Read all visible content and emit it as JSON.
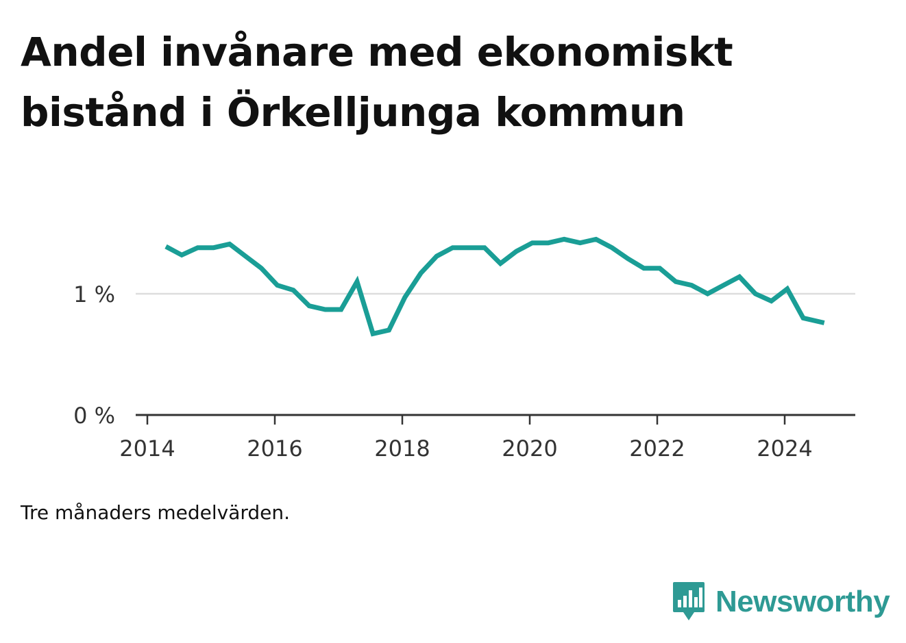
{
  "title": "Andel invånare med ekonomiskt bistånd i Örkelljunga kommun",
  "note": "Tre månaders medelvärden.",
  "brand": {
    "name": "Newsworthy",
    "icon": "newsworthy-logo-icon",
    "color": "#2e9a94"
  },
  "colors": {
    "line": "#1a9e96",
    "axis": "#333333",
    "grid": "#dddddd"
  },
  "chart_data": {
    "type": "line",
    "title": "Andel invånare med ekonomiskt bistånd i Örkelljunga kommun",
    "xlabel": "",
    "ylabel": "",
    "x_ticks": [
      "2014",
      "2016",
      "2018",
      "2020",
      "2022",
      "2024"
    ],
    "y_ticks": [
      "0 %",
      "1 %"
    ],
    "xlim": [
      2014.0,
      2025.0
    ],
    "ylim": [
      0,
      1.8
    ],
    "grid": "horizontal",
    "legend": "none",
    "series": [
      {
        "x": [
          2014.29,
          2014.54,
          2014.79,
          2015.04,
          2015.29,
          2015.54,
          2015.79,
          2016.04,
          2016.29,
          2016.54,
          2016.79,
          2017.04,
          2017.29,
          2017.54,
          2017.79,
          2018.04,
          2018.29,
          2018.54,
          2018.79,
          2019.04,
          2019.29,
          2019.54,
          2019.79,
          2020.04,
          2020.29,
          2020.54,
          2020.79,
          2021.04,
          2021.29,
          2021.54,
          2021.79,
          2022.04,
          2022.29,
          2022.54,
          2022.79,
          2023.04,
          2023.29,
          2023.54,
          2023.79,
          2024.04,
          2024.29,
          2024.62
        ],
        "y": [
          1.39,
          1.32,
          1.38,
          1.38,
          1.41,
          1.31,
          1.21,
          1.07,
          1.03,
          0.9,
          0.87,
          0.87,
          1.1,
          0.67,
          0.7,
          0.97,
          1.17,
          1.31,
          1.38,
          1.38,
          1.38,
          1.25,
          1.35,
          1.42,
          1.42,
          1.45,
          1.42,
          1.45,
          1.38,
          1.29,
          1.21,
          1.21,
          1.1,
          1.07,
          1.0,
          1.07,
          1.14,
          1.0,
          0.94,
          1.04,
          0.8,
          0.76
        ]
      }
    ]
  }
}
